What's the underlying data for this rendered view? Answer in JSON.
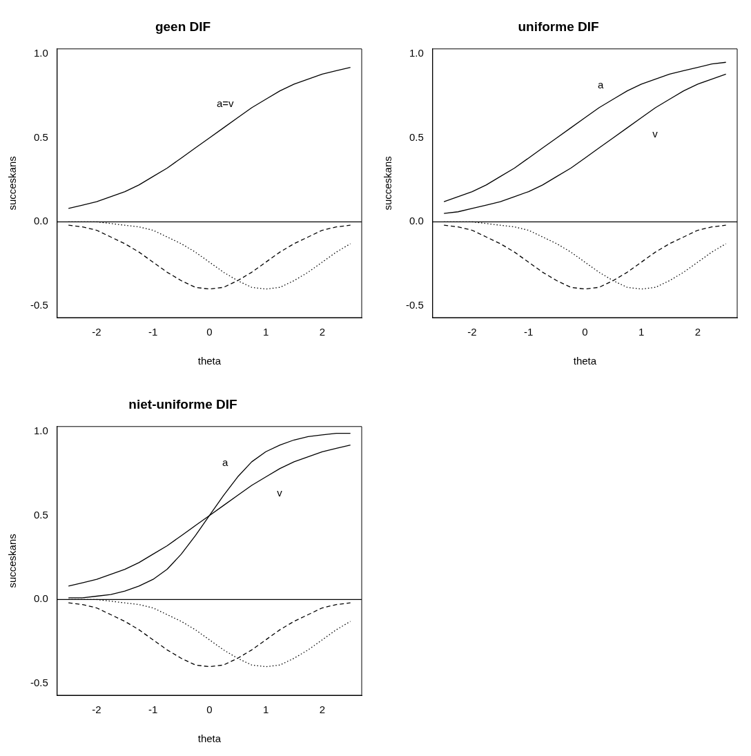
{
  "chart_data": [
    {
      "type": "line",
      "title": "geen DIF",
      "xlabel": "theta",
      "ylabel": "succeskans",
      "xlim": [
        -2.7,
        2.7
      ],
      "ylim": [
        -0.57,
        1.03
      ],
      "xticks": [
        -2,
        -1,
        0,
        1,
        2
      ],
      "yticks": [
        {
          "value": -0.5,
          "label": "-0.5"
        },
        {
          "value": 0,
          "label": "0.0"
        },
        {
          "value": 0.5,
          "label": "0.5"
        },
        {
          "value": 1,
          "label": "1.0"
        }
      ],
      "grid": false,
      "legend": false,
      "marker": "none",
      "x": [
        -2.5,
        -2.25,
        -2,
        -1.75,
        -1.5,
        -1.25,
        -1,
        -0.75,
        -0.5,
        -0.25,
        0,
        0.25,
        0.5,
        0.75,
        1,
        1.25,
        1.5,
        1.75,
        2,
        2.25,
        2.5
      ],
      "series": [
        {
          "name": "a=v",
          "color": "#000000",
          "line_style": "solid",
          "values": [
            0.08,
            0.1,
            0.12,
            0.15,
            0.18,
            0.22,
            0.27,
            0.32,
            0.38,
            0.44,
            0.5,
            0.56,
            0.62,
            0.68,
            0.73,
            0.78,
            0.82,
            0.85,
            0.88,
            0.9,
            0.92
          ]
        },
        {
          "color": "#000000",
          "line_style": "dashed",
          "values": [
            -0.02,
            -0.03,
            -0.05,
            -0.09,
            -0.13,
            -0.18,
            -0.24,
            -0.3,
            -0.35,
            -0.39,
            -0.4,
            -0.39,
            -0.35,
            -0.3,
            -0.24,
            -0.18,
            -0.13,
            -0.09,
            -0.05,
            -0.03,
            -0.02
          ]
        },
        {
          "color": "#000000",
          "line_style": "dotted",
          "values": [
            0,
            0,
            0,
            -0.01,
            -0.02,
            -0.03,
            -0.05,
            -0.09,
            -0.13,
            -0.18,
            -0.24,
            -0.3,
            -0.35,
            -0.39,
            -0.4,
            -0.39,
            -0.35,
            -0.3,
            -0.24,
            -0.18,
            -0.13
          ]
        }
      ],
      "ref_lines": [
        {
          "axis": "y",
          "value": 0,
          "color": "#000000",
          "line_style": "solid"
        }
      ]
    },
    {
      "type": "line",
      "title": "uniforme DIF",
      "xlabel": "theta",
      "ylabel": "succeskans",
      "xlim": [
        -2.7,
        2.7
      ],
      "ylim": [
        -0.57,
        1.03
      ],
      "xticks": [
        -2,
        -1,
        0,
        1,
        2
      ],
      "yticks": [
        {
          "value": -0.5,
          "label": "-0.5"
        },
        {
          "value": 0,
          "label": "0.0"
        },
        {
          "value": 0.5,
          "label": "0.5"
        },
        {
          "value": 1,
          "label": "1.0"
        }
      ],
      "grid": false,
      "legend": false,
      "marker": "none",
      "x": [
        -2.5,
        -2.25,
        -2,
        -1.75,
        -1.5,
        -1.25,
        -1,
        -0.75,
        -0.5,
        -0.25,
        0,
        0.25,
        0.5,
        0.75,
        1,
        1.25,
        1.5,
        1.75,
        2,
        2.25,
        2.5
      ],
      "series": [
        {
          "name": "a",
          "color": "#000000",
          "line_style": "solid",
          "values": [
            0.12,
            0.15,
            0.18,
            0.22,
            0.27,
            0.32,
            0.38,
            0.44,
            0.5,
            0.56,
            0.62,
            0.68,
            0.73,
            0.78,
            0.82,
            0.85,
            0.88,
            0.9,
            0.92,
            0.94,
            0.95
          ]
        },
        {
          "name": "v",
          "color": "#000000",
          "line_style": "solid",
          "values": [
            0.05,
            0.06,
            0.08,
            0.1,
            0.12,
            0.15,
            0.18,
            0.22,
            0.27,
            0.32,
            0.38,
            0.44,
            0.5,
            0.56,
            0.62,
            0.68,
            0.73,
            0.78,
            0.82,
            0.85,
            0.88
          ]
        },
        {
          "color": "#000000",
          "line_style": "dashed",
          "values": [
            -0.02,
            -0.03,
            -0.05,
            -0.09,
            -0.13,
            -0.18,
            -0.24,
            -0.3,
            -0.35,
            -0.39,
            -0.4,
            -0.39,
            -0.35,
            -0.3,
            -0.24,
            -0.18,
            -0.13,
            -0.09,
            -0.05,
            -0.03,
            -0.02
          ]
        },
        {
          "color": "#000000",
          "line_style": "dotted",
          "values": [
            0,
            0,
            0,
            -0.01,
            -0.02,
            -0.03,
            -0.05,
            -0.09,
            -0.13,
            -0.18,
            -0.24,
            -0.3,
            -0.35,
            -0.39,
            -0.4,
            -0.39,
            -0.35,
            -0.3,
            -0.24,
            -0.18,
            -0.13
          ]
        }
      ],
      "ref_lines": [
        {
          "axis": "y",
          "value": 0,
          "color": "#000000",
          "line_style": "solid"
        }
      ]
    },
    {
      "type": "line",
      "title": "niet-uniforme DIF",
      "xlabel": "theta",
      "ylabel": "succeskans",
      "xlim": [
        -2.7,
        2.7
      ],
      "ylim": [
        -0.57,
        1.03
      ],
      "xticks": [
        -2,
        -1,
        0,
        1,
        2
      ],
      "yticks": [
        {
          "value": -0.5,
          "label": "-0.5"
        },
        {
          "value": 0,
          "label": "0.0"
        },
        {
          "value": 0.5,
          "label": "0.5"
        },
        {
          "value": 1,
          "label": "1.0"
        }
      ],
      "grid": false,
      "legend": false,
      "marker": "none",
      "x": [
        -2.5,
        -2.25,
        -2,
        -1.75,
        -1.5,
        -1.25,
        -1,
        -0.75,
        -0.5,
        -0.25,
        0,
        0.25,
        0.5,
        0.75,
        1,
        1.25,
        1.5,
        1.75,
        2,
        2.25,
        2.5
      ],
      "series": [
        {
          "name": "a",
          "color": "#000000",
          "line_style": "solid",
          "values": [
            0.01,
            0.01,
            0.02,
            0.03,
            0.05,
            0.08,
            0.12,
            0.18,
            0.27,
            0.38,
            0.5,
            0.62,
            0.73,
            0.82,
            0.88,
            0.92,
            0.95,
            0.97,
            0.98,
            0.99,
            0.99
          ]
        },
        {
          "name": "v",
          "color": "#000000",
          "line_style": "solid",
          "values": [
            0.08,
            0.1,
            0.12,
            0.15,
            0.18,
            0.22,
            0.27,
            0.32,
            0.38,
            0.44,
            0.5,
            0.56,
            0.62,
            0.68,
            0.73,
            0.78,
            0.82,
            0.85,
            0.88,
            0.9,
            0.92
          ]
        },
        {
          "color": "#000000",
          "line_style": "dashed",
          "values": [
            -0.02,
            -0.03,
            -0.05,
            -0.09,
            -0.13,
            -0.18,
            -0.24,
            -0.3,
            -0.35,
            -0.39,
            -0.4,
            -0.39,
            -0.35,
            -0.3,
            -0.24,
            -0.18,
            -0.13,
            -0.09,
            -0.05,
            -0.03,
            -0.02
          ]
        },
        {
          "color": "#000000",
          "line_style": "dotted",
          "values": [
            0,
            0,
            0,
            -0.01,
            -0.02,
            -0.03,
            -0.05,
            -0.09,
            -0.13,
            -0.18,
            -0.24,
            -0.3,
            -0.35,
            -0.39,
            -0.4,
            -0.39,
            -0.35,
            -0.3,
            -0.24,
            -0.18,
            -0.13
          ]
        }
      ],
      "ref_lines": [
        {
          "axis": "y",
          "value": 0,
          "color": "#000000",
          "line_style": "solid"
        }
      ]
    }
  ]
}
